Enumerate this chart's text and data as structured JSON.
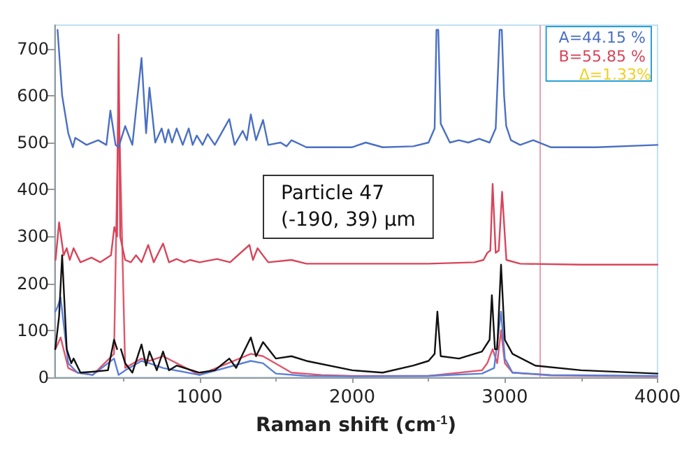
{
  "chart_data": {
    "type": "line",
    "xlabel": "Raman shift (cm$^{-1}$)",
    "xlim": [
      50,
      4000
    ],
    "xticks": [
      1000,
      2000,
      3000,
      4000
    ],
    "ylim": [
      0,
      750
    ],
    "yticks": [
      0,
      100,
      200,
      300,
      400,
      500,
      600,
      700
    ],
    "grid": false,
    "legend": "top right",
    "marker": "none",
    "line_style": "solid",
    "annotations": [
      "Δ=1.33%",
      "Particle 47\n(-190, 39) μm"
    ],
    "ref_lines": [
      {
        "axis": "x",
        "value": 3230,
        "color": "#e8a0b0"
      }
    ],
    "series": [
      {
        "name": "A=44.15 %",
        "color": "#4a6fc4",
        "x": [
          70,
          100,
          140,
          170,
          186,
          260,
          336,
          390,
          416,
          450,
          470,
          513,
          560,
          620,
          650,
          672,
          710,
          752,
          775,
          796,
          820,
          850,
          890,
          929,
          955,
          982,
          1020,
          1053,
          1100,
          1195,
          1230,
          1283,
          1310,
          1336,
          1370,
          1416,
          1450,
          1531,
          1570,
          1602,
          1700,
          2000,
          2089,
          2200,
          2400,
          2500,
          2540,
          2552,
          2564,
          2580,
          2640,
          2699,
          2760,
          2832,
          2900,
          2940,
          2966,
          2980,
          2995,
          3009,
          3040,
          3100,
          3186,
          3300,
          3600,
          4000
        ],
        "values": [
          740,
          600,
          520,
          490,
          510,
          495,
          505,
          495,
          568,
          495,
          490,
          535,
          495,
          680,
          520,
          617,
          500,
          530,
          500,
          528,
          500,
          530,
          495,
          530,
          495,
          515,
          495,
          518,
          495,
          550,
          495,
          525,
          505,
          560,
          505,
          548,
          495,
          500,
          492,
          505,
          490,
          490,
          500,
          490,
          492,
          500,
          530,
          740,
          740,
          540,
          500,
          505,
          500,
          508,
          500,
          530,
          740,
          740,
          600,
          535,
          505,
          495,
          505,
          490,
          490,
          495
        ]
      },
      {
        "name": "B=55.85 %",
        "color": "#d8455a",
        "x": [
          57,
          80,
          110,
          130,
          150,
          175,
          220,
          292,
          350,
          420,
          442,
          460,
          470,
          480,
          513,
          550,
          584,
          620,
          664,
          700,
          761,
          800,
          850,
          900,
          938,
          1000,
          1115,
          1200,
          1327,
          1350,
          1380,
          1450,
          1602,
          1700,
          2000,
          2500,
          2800,
          2860,
          2885,
          2905,
          2920,
          2940,
          2960,
          2982,
          3010,
          3100,
          3500,
          4000
        ],
        "values": [
          250,
          330,
          260,
          275,
          250,
          275,
          245,
          255,
          245,
          260,
          320,
          300,
          730,
          300,
          250,
          245,
          260,
          245,
          282,
          245,
          285,
          245,
          252,
          245,
          250,
          245,
          252,
          245,
          282,
          250,
          275,
          245,
          250,
          242,
          242,
          242,
          245,
          250,
          265,
          270,
          412,
          265,
          270,
          395,
          250,
          242,
          240,
          240
        ]
      },
      {
        "color": "#111111",
        "x": [
          55,
          80,
          100,
          130,
          160,
          175,
          220,
          300,
          400,
          440,
          460,
          470,
          485,
          513,
          560,
          620,
          650,
          672,
          720,
          761,
          800,
          850,
          1000,
          1100,
          1195,
          1240,
          1283,
          1336,
          1370,
          1416,
          1500,
          1602,
          1700,
          2000,
          2200,
          2400,
          2500,
          2540,
          2558,
          2580,
          2700,
          2850,
          2900,
          2915,
          2935,
          2950,
          2975,
          3000,
          3050,
          3200,
          3500,
          4000
        ],
        "values": [
          60,
          130,
          260,
          60,
          30,
          40,
          10,
          12,
          15,
          80,
          60,
          null,
          60,
          30,
          10,
          70,
          25,
          55,
          15,
          55,
          15,
          25,
          10,
          15,
          40,
          20,
          50,
          85,
          45,
          75,
          40,
          45,
          35,
          15,
          10,
          25,
          35,
          50,
          140,
          45,
          40,
          55,
          80,
          175,
          60,
          60,
          240,
          80,
          50,
          25,
          15,
          8
        ]
      },
      {
        "color": "#5a7fd8",
        "x": [
          55,
          70,
          90,
          140,
          200,
          300,
          440,
          470,
          513,
          620,
          672,
          761,
          1000,
          1336,
          1416,
          1500,
          1700,
          2000,
          2500,
          2850,
          2930,
          2975,
          3000,
          3050,
          3300,
          4000
        ],
        "values": [
          140,
          150,
          170,
          30,
          10,
          5,
          40,
          5,
          15,
          35,
          30,
          20,
          5,
          35,
          30,
          8,
          3,
          2,
          3,
          8,
          20,
          140,
          40,
          10,
          5,
          3
        ]
      },
      {
        "color": "#e0556a",
        "x": [
          55,
          70,
          90,
          140,
          200,
          300,
          440,
          470,
          513,
          620,
          672,
          761,
          1000,
          1336,
          1416,
          1602,
          1800,
          2000,
          2500,
          2850,
          2885,
          2920,
          2950,
          2975,
          3000,
          3050,
          3300,
          4000
        ],
        "values": [
          60,
          70,
          85,
          20,
          10,
          5,
          50,
          600,
          20,
          40,
          35,
          45,
          5,
          50,
          45,
          10,
          5,
          3,
          3,
          15,
          30,
          60,
          30,
          100,
          30,
          10,
          4,
          2
        ]
      }
    ]
  }
}
